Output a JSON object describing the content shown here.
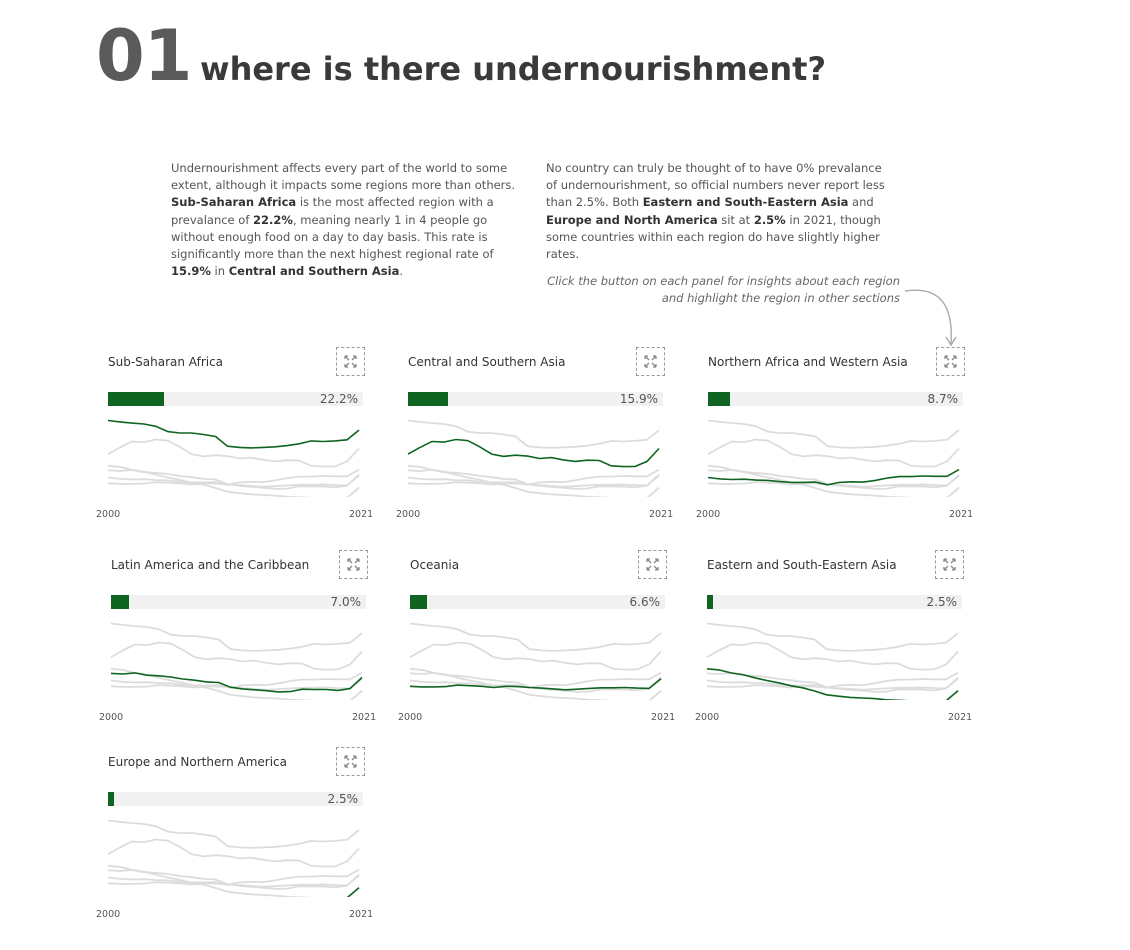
{
  "header": {
    "number": "01",
    "title": "where is there undernourishment?"
  },
  "intro_left": [
    {
      "t": "Undernourishment affects every part of the world to some extent, although it impacts some regions more than others. "
    },
    {
      "t": "Sub-Saharan Africa",
      "b": true
    },
    {
      "t": " is the most affected region with a prevalance of "
    },
    {
      "t": "22.2%",
      "b": true
    },
    {
      "t": ", meaning nearly 1 in 4 people go without enough food on a day to day basis. This rate is significantly more than the next highest regional rate of "
    },
    {
      "t": "15.9%",
      "b": true
    },
    {
      "t": " in "
    },
    {
      "t": "Central and Southern Asia",
      "b": true
    },
    {
      "t": "."
    }
  ],
  "intro_right": [
    {
      "t": "No country can truly be thought of to have 0% prevalance of undernourishment, so official numbers never report less than 2.5%. Both "
    },
    {
      "t": "Eastern and South-Eastern Asia",
      "b": true
    },
    {
      "t": " and "
    },
    {
      "t": "Europe and North America",
      "b": true
    },
    {
      "t": " sit at "
    },
    {
      "t": "2.5%",
      "b": true
    },
    {
      "t": " in 2021, though some countries within each region do have slightly higher rates."
    }
  ],
  "hint": {
    "line1": "Click the button on each panel for insights about each region",
    "line2": "and highlight the region in other sections"
  },
  "colors": {
    "accent": "#0e6420",
    "context_line": "#dcdcdc",
    "bar_bg": "#f1f1f1"
  },
  "chart_data": {
    "type": "line",
    "x": [
      2000,
      2001,
      2002,
      2003,
      2004,
      2005,
      2006,
      2007,
      2008,
      2009,
      2010,
      2011,
      2012,
      2013,
      2014,
      2015,
      2016,
      2017,
      2018,
      2019,
      2020,
      2021
    ],
    "xlabels": [
      "2000",
      "2021"
    ],
    "ylim": [
      0,
      26
    ],
    "series": [
      {
        "name": "Sub-Saharan Africa",
        "label": "22.2%",
        "current": 22.2,
        "values": [
          25.5,
          25.0,
          24.6,
          24.3,
          23.5,
          21.7,
          21.2,
          21.2,
          20.7,
          20.0,
          16.7,
          16.3,
          16.1,
          16.3,
          16.5,
          16.9,
          17.5,
          18.5,
          18.3,
          18.5,
          18.9,
          22.2
        ]
      },
      {
        "name": "Central and Southern Asia",
        "label": "15.9%",
        "current": 15.9,
        "values": [
          14.0,
          16.3,
          18.3,
          18.1,
          19.0,
          18.6,
          16.5,
          14.0,
          13.2,
          13.6,
          13.3,
          12.5,
          12.8,
          12.0,
          11.5,
          11.9,
          11.8,
          10.0,
          9.7,
          9.8,
          11.5,
          15.9
        ]
      },
      {
        "name": "Northern Africa and Western Asia",
        "label": "8.7%",
        "current": 8.7,
        "values": [
          6.0,
          5.5,
          5.3,
          5.4,
          5.1,
          5.0,
          4.6,
          4.3,
          4.3,
          4.4,
          3.5,
          4.3,
          4.5,
          4.4,
          5.0,
          5.8,
          6.3,
          6.3,
          6.5,
          6.4,
          6.4,
          8.7
        ]
      },
      {
        "name": "Latin America and the Caribbean",
        "label": "7.0%",
        "current": 7.0,
        "values": [
          8.4,
          8.2,
          8.6,
          7.8,
          7.6,
          7.2,
          6.5,
          6.1,
          5.5,
          5.3,
          3.7,
          3.1,
          2.8,
          2.5,
          2.1,
          2.2,
          3.0,
          2.9,
          2.9,
          2.6,
          3.2,
          7.0
        ]
      },
      {
        "name": "Oceania",
        "label": "6.6%",
        "current": 6.6,
        "values": [
          4.0,
          3.8,
          3.8,
          3.9,
          4.4,
          4.2,
          4.0,
          3.6,
          4.0,
          3.9,
          3.6,
          3.4,
          3.1,
          2.8,
          3.0,
          3.3,
          3.5,
          3.5,
          3.6,
          3.4,
          3.3,
          6.6
        ]
      },
      {
        "name": "Eastern and South-Eastern Asia",
        "label": "2.5%",
        "current": 2.5,
        "values": [
          10.0,
          9.6,
          8.6,
          8.0,
          6.9,
          6.0,
          5.2,
          4.2,
          3.5,
          2.4,
          1.1,
          0.6,
          0.2,
          0.0,
          -0.2,
          -0.6,
          -0.8,
          -1.0,
          -1.0,
          -1.0,
          -1.0,
          2.5
        ]
      },
      {
        "name": "Europe and Northern America",
        "label": "2.5%",
        "current": 2.5,
        "values": [
          -1.0,
          -1.0,
          -1.0,
          -1.0,
          -1.0,
          -1.0,
          -1.0,
          -1.0,
          -1.0,
          -1.0,
          -1.0,
          -1.0,
          -1.0,
          -1.0,
          -1.0,
          -1.0,
          -1.0,
          -1.0,
          -1.0,
          -1.0,
          -1.0,
          2.5
        ]
      }
    ]
  }
}
